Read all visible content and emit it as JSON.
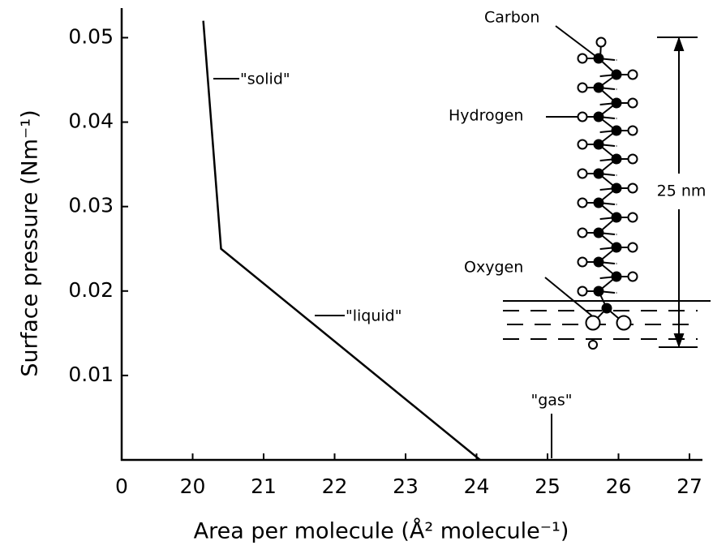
{
  "chart_data": {
    "type": "line",
    "xlabel": "Area per molecule (Å² molecule⁻¹)",
    "ylabel": "Surface pressure (Nm⁻¹)",
    "x": [
      20.15,
      20.4,
      24.05
    ],
    "series": [
      {
        "color": "#000000",
        "values": [
          0.052,
          0.025,
          0
        ]
      }
    ],
    "ylim": [
      0,
      0.0535
    ],
    "xticks": [
      0,
      20,
      21,
      22,
      23,
      24,
      25,
      26,
      27
    ],
    "yticks": [
      0.01,
      0.02,
      0.03,
      0.04,
      0.05
    ],
    "annotations": [
      "\"solid\"",
      "\"liquid\"",
      "\"gas\"",
      "Carbon",
      "Hydrogen",
      "Oxygen",
      "25 nm"
    ]
  }
}
